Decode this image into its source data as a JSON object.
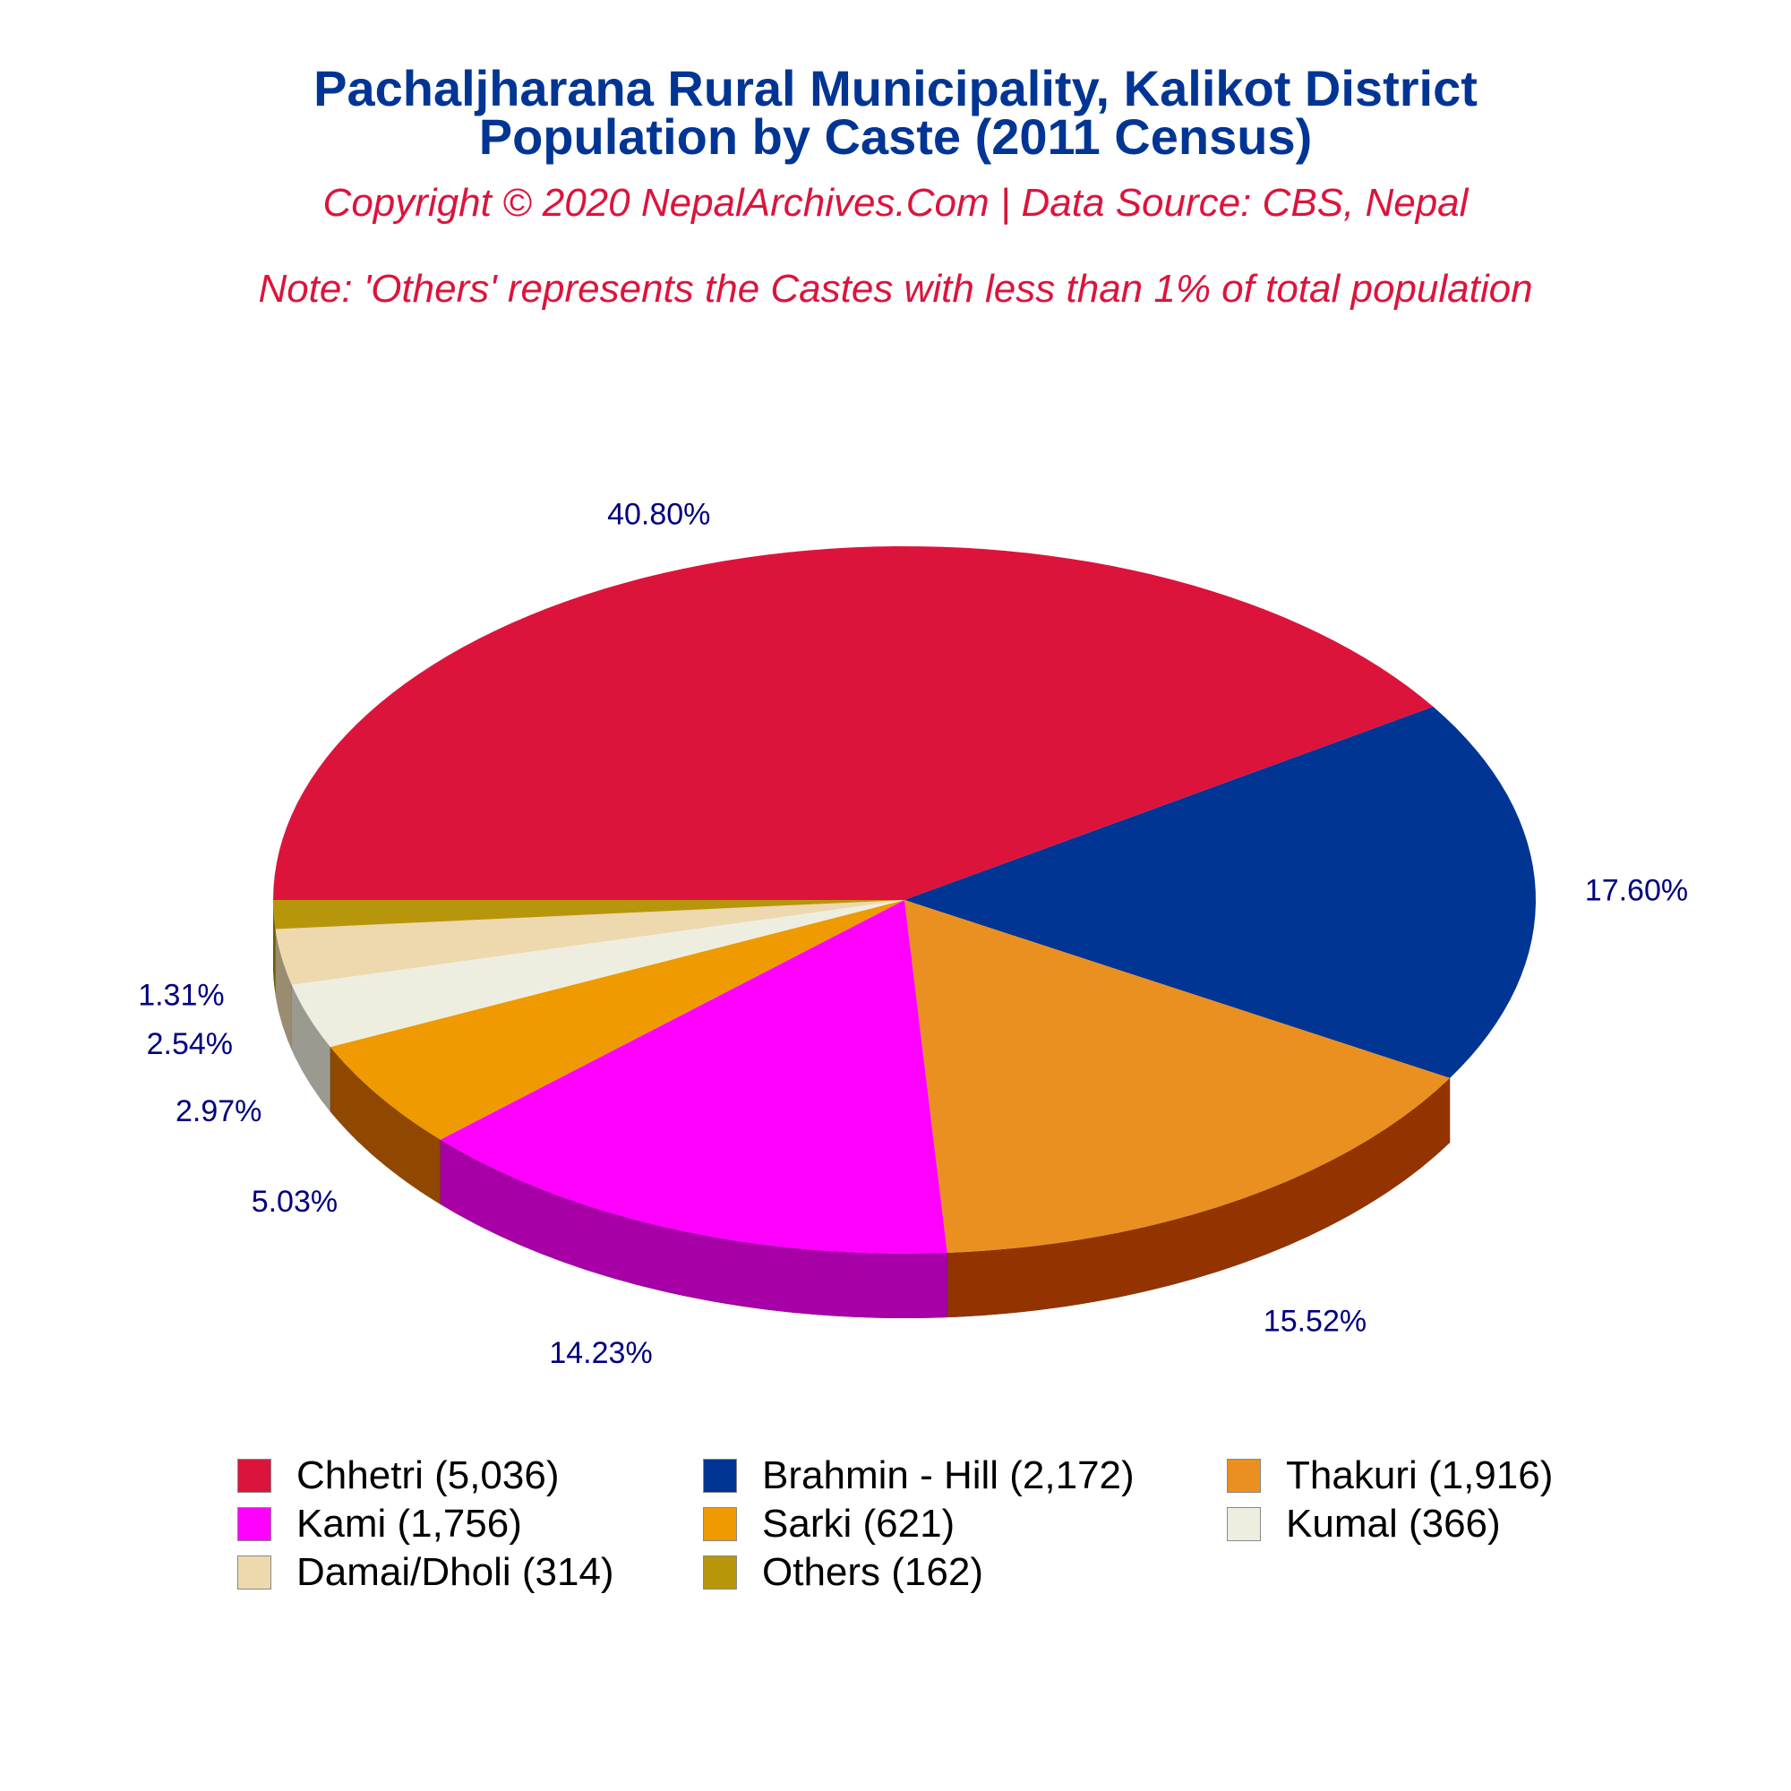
{
  "header": {
    "title_line1": "Pachaljharana Rural Municipality, Kalikot District",
    "title_line2": "Population by Caste (2011 Census)",
    "subtitle": "Copyright © 2020 NepalArchives.Com | Data Source: CBS, Nepal",
    "note": "Note: 'Others' represents the Castes with less than 1% of total population"
  },
  "chart_data": {
    "type": "pie",
    "style": "3d",
    "categories": [
      "Chhetri",
      "Brahmin - Hill",
      "Thakuri",
      "Kami",
      "Sarki",
      "Kumal",
      "Damai/Dholi",
      "Others"
    ],
    "values": [
      5036,
      2172,
      1916,
      1756,
      621,
      366,
      314,
      162
    ],
    "percent_labels": [
      "40.80%",
      "17.60%",
      "15.52%",
      "14.23%",
      "5.03%",
      "2.97%",
      "2.54%",
      "1.31%"
    ],
    "legend_labels": [
      "Chhetri (5,036)",
      "Brahmin - Hill (2,172)",
      "Thakuri (1,916)",
      "Kami (1,756)",
      "Sarki (621)",
      "Kumal (366)",
      "Damai/Dholi (314)",
      "Others (162)"
    ],
    "colors": [
      "#DC143C",
      "#003594",
      "#EA9020",
      "#FF00FF",
      "#EE9A00",
      "#EEEEE0",
      "#EED8AE",
      "#B8960B"
    ],
    "side_colors": [
      "#8B0A22",
      "#000033",
      "#933400",
      "#A600A6",
      "#904700",
      "#9A9A90",
      "#9A8C70",
      "#6E5A06"
    ],
    "label_color": "#000080",
    "legend_placement": "bottom"
  }
}
